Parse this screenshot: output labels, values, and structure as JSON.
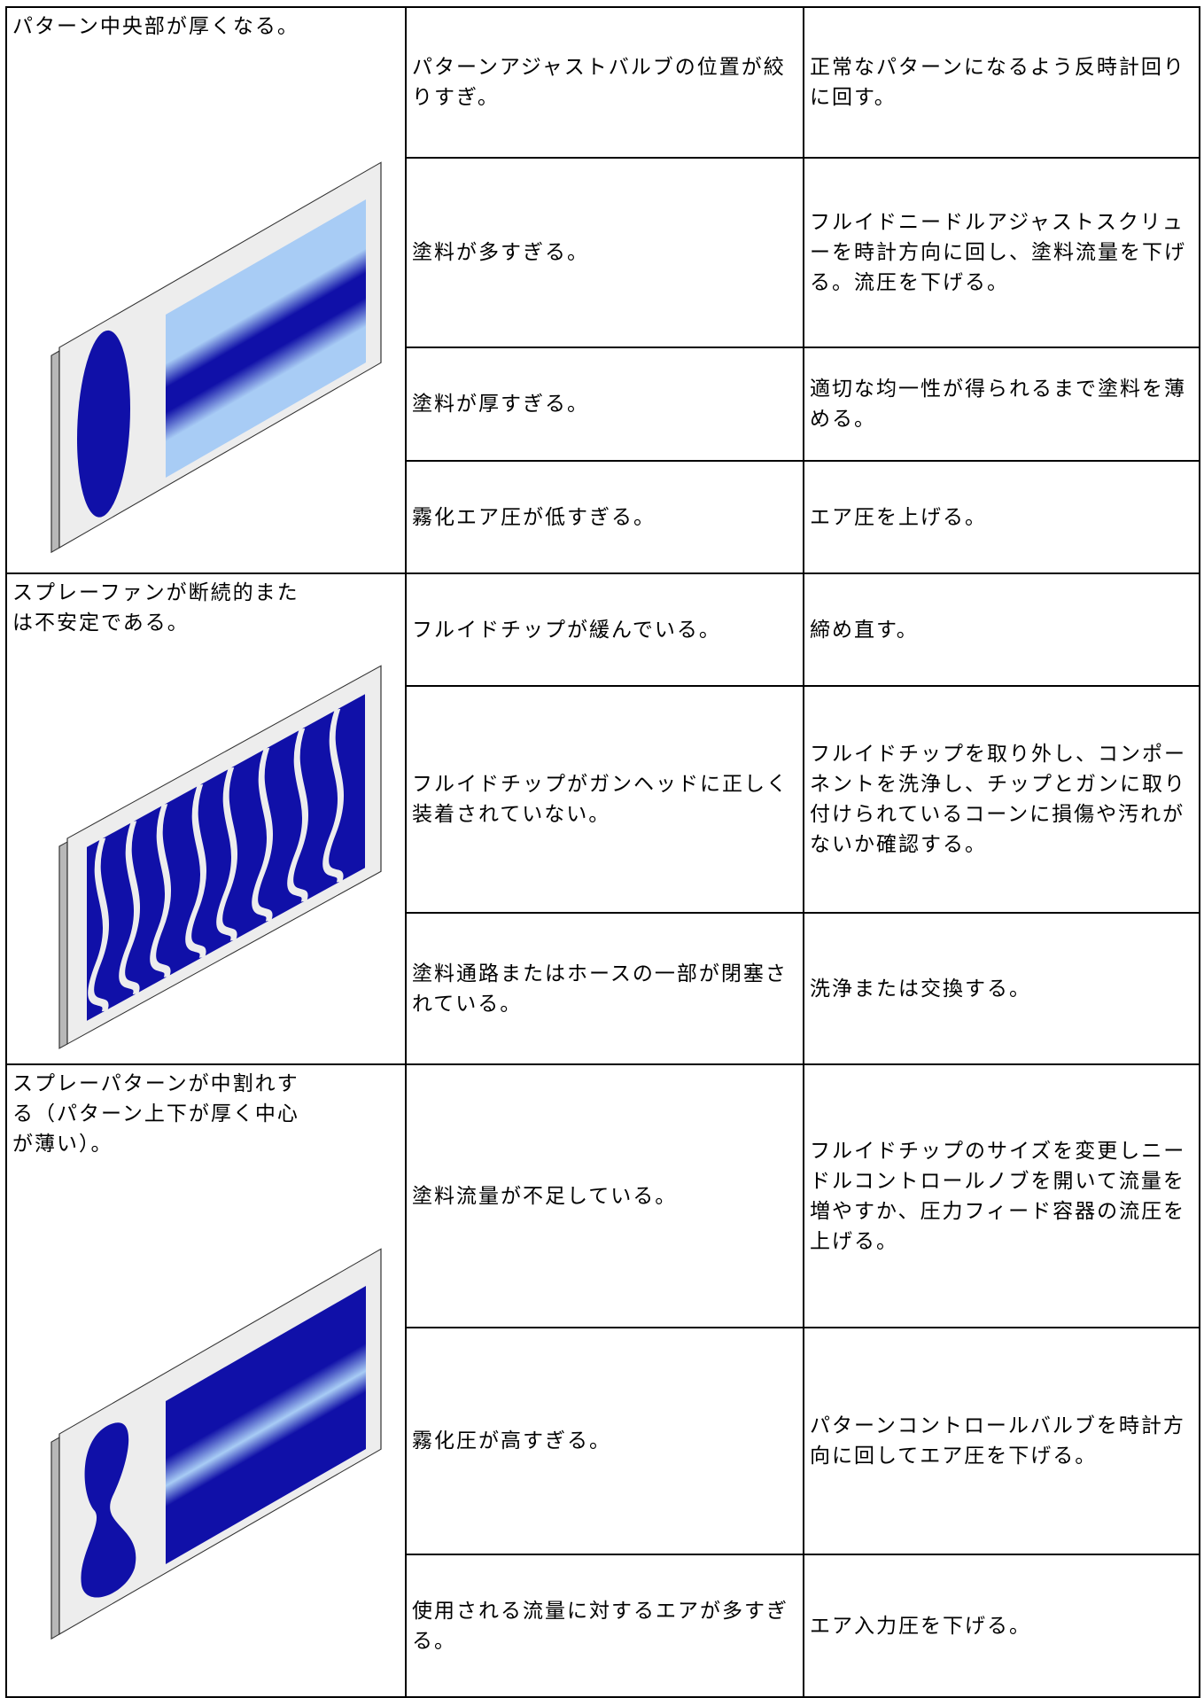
{
  "groups": [
    {
      "symptom": "パターン中央部が厚くなる。",
      "rows": [
        {
          "cause": "パターンアジャストバルブの位置が絞りすぎ。",
          "solution": "正常なパターンになるよう反時計回りに回す。"
        },
        {
          "cause": "塗料が多すぎる。",
          "solution": "フルイドニードルアジャストスクリューを時計方向に回し、塗料流量を下げる。流圧を下げる。"
        },
        {
          "cause": "塗料が厚すぎる。",
          "solution": "適切な均一性が得られるまで塗料を薄める。"
        },
        {
          "cause": "霧化エア圧が低すぎる。",
          "solution": "エア圧を上げる。"
        }
      ]
    },
    {
      "symptom": "スプレーファンが断続的または不安定である。",
      "rows": [
        {
          "cause": "フルイドチップが緩んでいる。",
          "solution": "締め直す。"
        },
        {
          "cause": "フルイドチップがガンヘッドに正しく装着されていない。",
          "solution": "フルイドチップを取り外し、コンポーネントを洗浄し、チップとガンに取り付けられているコーンに損傷や汚れがないか確認する。"
        },
        {
          "cause": "塗料通路またはホースの一部が閉塞されている。",
          "solution": "洗浄または交換する。"
        }
      ]
    },
    {
      "symptom": "スプレーパターンが中割れする（パターン上下が厚く中心が薄い）。",
      "rows": [
        {
          "cause": "塗料流量が不足している。",
          "solution": "フルイドチップのサイズを変更しニードルコントロールノブを開いて流量を増やすか、圧力フィード容器の流圧を上げる。"
        },
        {
          "cause": "霧化圧が高すぎる。",
          "solution": "パターンコントロールバルブを時計方向に回してエア圧を下げる。"
        },
        {
          "cause": "使用される流量に対するエアが多すぎる。",
          "solution": "エア入力圧を下げる。"
        }
      ]
    }
  ]
}
